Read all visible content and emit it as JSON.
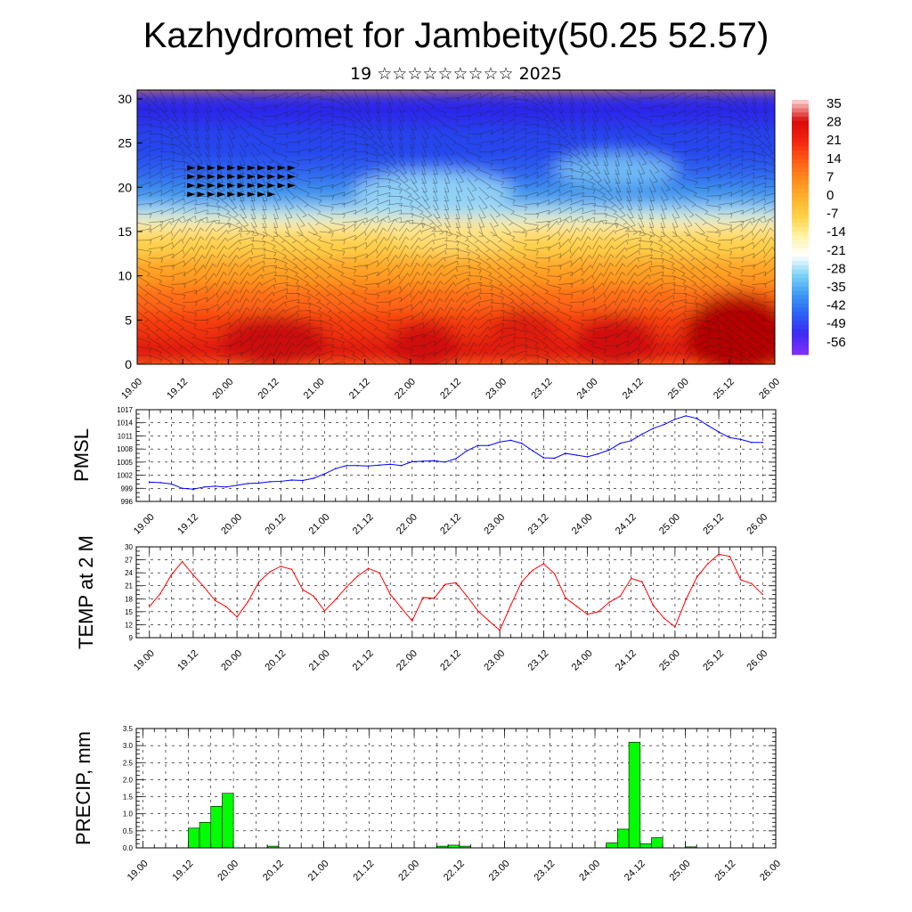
{
  "header": {
    "title": "Kazhydromet for Jambeity(50.25 52.57)",
    "date_line": "19 ☆☆☆☆☆☆☆☆☆ 2025"
  },
  "chart_data": [
    {
      "type": "heatmap",
      "name": "temperature-wind-cross-section",
      "x_tick_labels": [
        "19.00",
        "19.12",
        "20.00",
        "20.12",
        "21.00",
        "21.12",
        "22.00",
        "22.12",
        "23.00",
        "23.12",
        "24.00",
        "24.12",
        "25.00",
        "25.12",
        "26.00"
      ],
      "y_ticks": [
        0,
        5,
        10,
        15,
        20,
        25,
        30
      ],
      "ylim": [
        0,
        31
      ],
      "xlim": [
        0,
        14
      ],
      "colorbar_labels": [
        "35",
        "28",
        "21",
        "14",
        "7",
        "0",
        "-7",
        "-14",
        "-21",
        "-28",
        "-35",
        "-42",
        "-49",
        "-56"
      ],
      "colorscale": [
        "#7b2ff7",
        "#3c2af2",
        "#2c62f5",
        "#3d9af5",
        "#7cd3f5",
        "#ffffff",
        "#fff4a8",
        "#ffd44a",
        "#ffb32c",
        "#ff8a1e",
        "#ff5a14",
        "#f3220e",
        "#d80a0a",
        "#f8c6c6"
      ],
      "wind": "barbs",
      "grid": false,
      "legend": "colorbar-right"
    },
    {
      "type": "line",
      "name": "pmsl",
      "ylabel": "PMSL",
      "color": "#0000ff",
      "x_tick_labels": [
        "19.00",
        "19.12",
        "20.00",
        "20.12",
        "21.00",
        "21.12",
        "22.00",
        "22.12",
        "23.00",
        "23.12",
        "24.00",
        "24.12",
        "25.00",
        "25.12",
        "26.00"
      ],
      "y_ticks": [
        996,
        999,
        1002,
        1005,
        1008,
        1011,
        1014,
        1017
      ],
      "ylim": [
        996,
        1017
      ],
      "xlim": [
        -0.3,
        14.3
      ],
      "x": [
        0,
        0.25,
        0.5,
        0.75,
        1,
        1.25,
        1.5,
        1.75,
        2,
        2.25,
        2.5,
        2.75,
        3,
        3.25,
        3.5,
        3.75,
        4,
        4.25,
        4.5,
        4.75,
        5,
        5.25,
        5.5,
        5.75,
        6,
        6.25,
        6.5,
        6.75,
        7,
        7.25,
        7.5,
        7.75,
        8,
        8.25,
        8.5,
        8.75,
        9,
        9.25,
        9.5,
        9.75,
        10,
        10.25,
        10.5,
        10.75,
        11,
        11.25,
        11.5,
        11.75,
        12,
        12.25,
        12.5,
        12.75,
        13,
        13.25,
        13.5,
        13.75,
        14
      ],
      "values": [
        1000.4,
        1000.3,
        1000.0,
        999.0,
        998.8,
        999.3,
        999.5,
        999.3,
        999.7,
        1000.1,
        1000.2,
        1000.5,
        1000.6,
        1000.9,
        1000.8,
        1001.3,
        1002.3,
        1003.5,
        1004.2,
        1004.2,
        1004.1,
        1004.3,
        1004.5,
        1004.2,
        1005.1,
        1005.2,
        1005.3,
        1005.0,
        1005.8,
        1007.6,
        1008.8,
        1008.8,
        1009.6,
        1010.0,
        1009.3,
        1007.6,
        1006.0,
        1005.9,
        1007.0,
        1006.6,
        1006.2,
        1006.9,
        1007.8,
        1009.3,
        1009.9,
        1011.4,
        1012.7,
        1013.6,
        1014.8,
        1015.6,
        1015.0,
        1013.4,
        1011.9,
        1010.6,
        1010.2,
        1009.5,
        1009.5
      ]
    },
    {
      "type": "line",
      "name": "temp-2m",
      "ylabel": "TEMP at 2 M",
      "color": "#ff0000",
      "x_tick_labels": [
        "19.00",
        "19.12",
        "20.00",
        "20.12",
        "21.00",
        "21.12",
        "22.00",
        "22.12",
        "23.00",
        "23.12",
        "24.00",
        "24.12",
        "25.00",
        "25.12",
        "26.00"
      ],
      "y_ticks": [
        9,
        12,
        15,
        18,
        21,
        24,
        27,
        30
      ],
      "ylim": [
        9,
        30
      ],
      "xlim": [
        -0.3,
        14.3
      ],
      "x": [
        0,
        0.25,
        0.5,
        0.75,
        1,
        1.25,
        1.5,
        1.75,
        2,
        2.25,
        2.5,
        2.75,
        3,
        3.25,
        3.5,
        3.75,
        4,
        4.25,
        4.5,
        4.75,
        5,
        5.25,
        5.5,
        5.75,
        6,
        6.25,
        6.5,
        6.75,
        7,
        7.25,
        7.5,
        7.75,
        8,
        8.25,
        8.5,
        8.75,
        9,
        9.25,
        9.5,
        9.75,
        10,
        10.25,
        10.5,
        10.75,
        11,
        11.25,
        11.5,
        11.75,
        12,
        12.25,
        12.5,
        12.75,
        13,
        13.25,
        13.5,
        13.75,
        14
      ],
      "values": [
        16.2,
        19.2,
        23.5,
        26.6,
        23.5,
        20.7,
        17.6,
        16.2,
        13.8,
        17.3,
        21.9,
        24.2,
        25.5,
        24.8,
        20.1,
        18.6,
        15.2,
        17.8,
        20.7,
        23.2,
        25.0,
        24.0,
        19.0,
        15.9,
        12.9,
        18.3,
        18.1,
        21.3,
        21.7,
        18.6,
        15.2,
        12.9,
        10.7,
        16.5,
        21.9,
        24.6,
        26.1,
        23.8,
        18.2,
        16.3,
        14.4,
        15.0,
        17.2,
        18.6,
        22.7,
        21.9,
        16.5,
        13.5,
        11.5,
        17.8,
        23.0,
        26.1,
        28.3,
        27.8,
        22.4,
        21.5,
        19.0
      ]
    },
    {
      "type": "bar",
      "name": "precip",
      "ylabel": "PRECIP, mm",
      "color": "#00ff00",
      "x_tick_labels": [
        "19.00",
        "19.12",
        "20.00",
        "20.12",
        "21.00",
        "21.12",
        "22.00",
        "22.12",
        "23.00",
        "23.12",
        "24.00",
        "24.12",
        "25.00",
        "25.12",
        "26.00"
      ],
      "y_ticks": [
        "0.0",
        "0.5",
        "1.0",
        "1.5",
        "2.0",
        "2.5",
        "3.0",
        "3.5"
      ],
      "ylim": [
        0,
        3.5
      ],
      "xlim": [
        -0.15,
        14
      ],
      "x": [
        1.0,
        1.25,
        1.5,
        1.75,
        2.75,
        6.5,
        6.75,
        7.0,
        10.25,
        10.5,
        10.75,
        11.0,
        11.25,
        12.0
      ],
      "values": [
        0.58,
        0.75,
        1.22,
        1.6,
        0.05,
        0.05,
        0.08,
        0.05,
        0.15,
        0.55,
        3.1,
        0.12,
        0.3,
        0.03
      ]
    }
  ]
}
